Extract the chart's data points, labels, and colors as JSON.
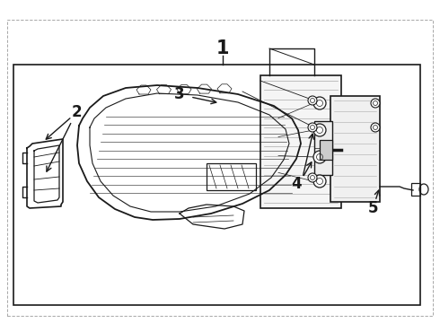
{
  "bg": "#f0f0f0",
  "fg": "#1a1a1a",
  "fig_w": 4.9,
  "fig_h": 3.6,
  "dpi": 100
}
